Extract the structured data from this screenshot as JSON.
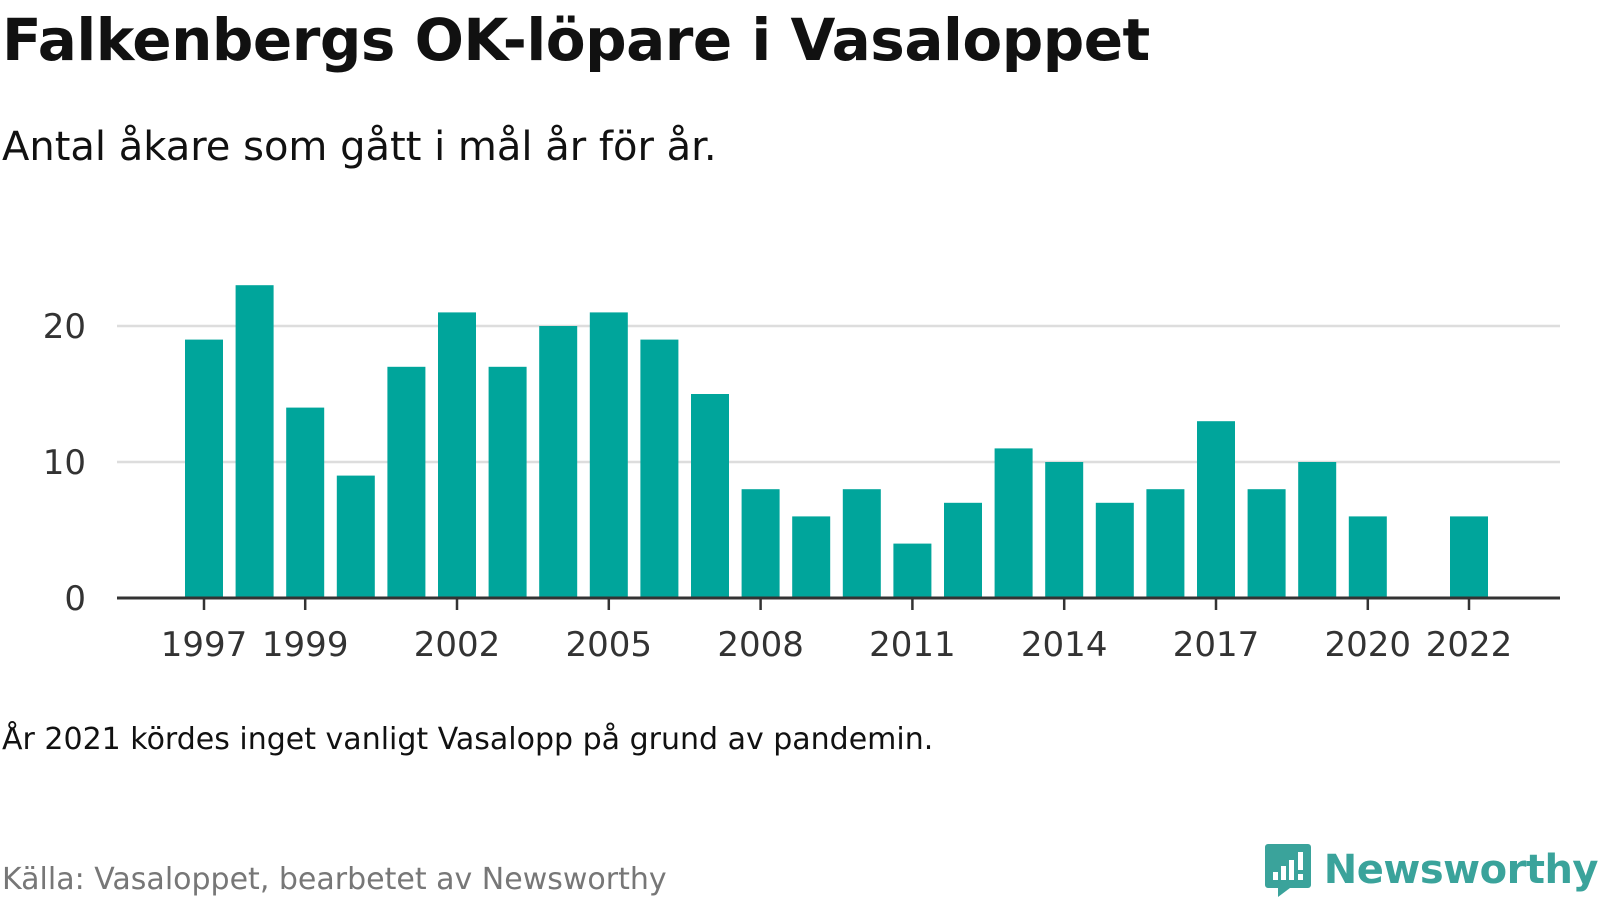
{
  "title": "Falkenbergs OK-löpare i Vasaloppet",
  "subtitle": "Antal åkare som gått i mål år för år.",
  "note": "År 2021 kördes inget vanligt Vasalopp på grund av pandemin.",
  "source": "Källa: Vasaloppet, bearbetet av Newsworthy",
  "brand": {
    "name": "Newsworthy",
    "icon": "newsworthy-logo-icon"
  },
  "colors": {
    "bar": "#00a59b",
    "grid": "#dddddd",
    "axis": "#333333",
    "tick_text": "#333333",
    "brand": "#3aa39b"
  },
  "chart_data": {
    "type": "bar",
    "categories": [
      "1997",
      "1998",
      "1999",
      "2000",
      "2001",
      "2002",
      "2003",
      "2004",
      "2005",
      "2006",
      "2007",
      "2008",
      "2009",
      "2010",
      "2011",
      "2012",
      "2013",
      "2014",
      "2015",
      "2016",
      "2017",
      "2018",
      "2019",
      "2020",
      "2021",
      "2022"
    ],
    "values": [
      19,
      23,
      14,
      9,
      17,
      21,
      17,
      20,
      21,
      19,
      15,
      8,
      6,
      8,
      4,
      7,
      11,
      10,
      7,
      8,
      13,
      8,
      10,
      6,
      null,
      6
    ],
    "x_tick_labels": [
      "1997",
      "1999",
      "2002",
      "2005",
      "2008",
      "2011",
      "2014",
      "2017",
      "2020",
      "2022"
    ],
    "y_ticks": [
      0,
      10,
      20
    ],
    "ylim": [
      0,
      25
    ],
    "grid": true,
    "xlabel": "",
    "ylabel": ""
  }
}
